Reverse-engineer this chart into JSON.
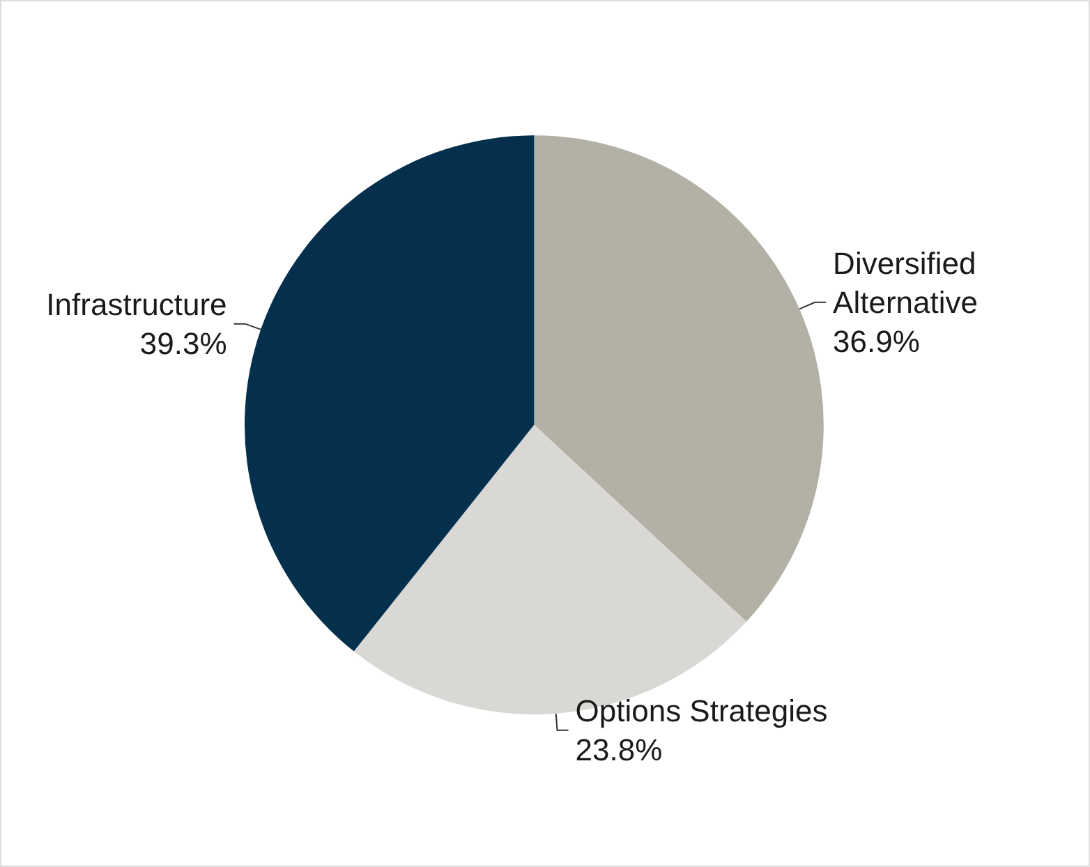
{
  "chart_data": {
    "type": "pie",
    "categories": [
      "Diversified Alternative",
      "Options Strategies",
      "Infrastructure"
    ],
    "values": [
      36.9,
      23.8,
      39.3
    ],
    "colors": [
      "#b3b0a6",
      "#d9d8d5",
      "#04304d"
    ],
    "value_labels": [
      "36.9%",
      "23.8%",
      "39.3%"
    ],
    "legend": false
  }
}
